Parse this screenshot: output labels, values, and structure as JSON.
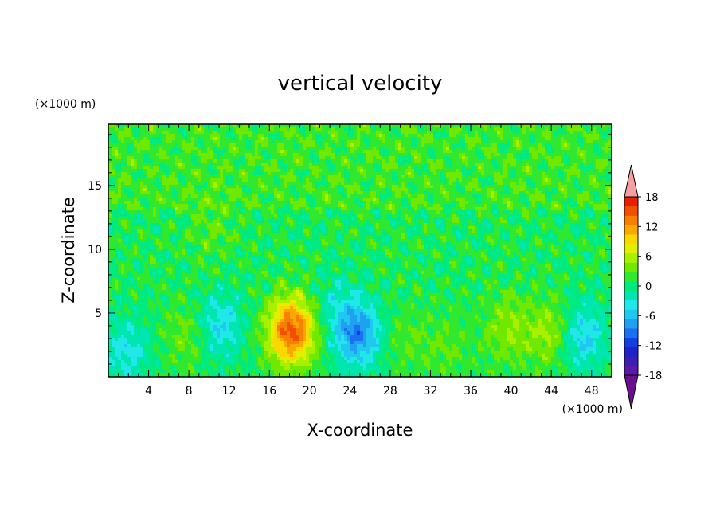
{
  "chart_data": {
    "type": "heatmap",
    "title": "vertical velocity",
    "xlabel": "X-coordinate",
    "ylabel": "Z-coordinate",
    "x_unit": "(×1000 m)",
    "y_unit": "(×1000 m)",
    "xlim": [
      0,
      50
    ],
    "ylim": [
      0,
      19.8
    ],
    "x_ticks": [
      "4",
      "8",
      "12",
      "16",
      "20",
      "24",
      "28",
      "32",
      "36",
      "40",
      "44",
      "48"
    ],
    "y_ticks": [
      "5",
      "10",
      "15"
    ],
    "colorbar": {
      "levels_min": -20,
      "levels_max": 20,
      "step": 2,
      "tick_labels": [
        "18",
        "12",
        "6",
        "0",
        "-6",
        "-12",
        "-18"
      ],
      "extend": "both",
      "colors": [
        "#6a0f8e",
        "#5a1aa8",
        "#3a1fb0",
        "#1f22c8",
        "#1040e0",
        "#1a70f0",
        "#20a0f0",
        "#20c8f0",
        "#20e8e8",
        "#00e6b0",
        "#00ea80",
        "#30e830",
        "#70e800",
        "#a8f000",
        "#e0f000",
        "#f8d800",
        "#f8a800",
        "#f88000",
        "#f05000",
        "#e82000",
        "#f4a0a0"
      ]
    },
    "features": [
      {
        "x": 18.2,
        "z": 3.6,
        "peak": 15
      },
      {
        "x": 8.0,
        "z": 3.2,
        "peak": 3
      },
      {
        "x": 11.0,
        "z": 4.0,
        "peak": -6
      },
      {
        "x": 1.8,
        "z": 2.0,
        "peak": -5
      },
      {
        "x": 24.8,
        "z": 3.3,
        "peak": -10
      },
      {
        "x": 22.5,
        "z": 5.5,
        "peak": -3
      },
      {
        "x": 29.5,
        "z": 3.0,
        "peak": 2
      },
      {
        "x": 39.8,
        "z": 3.8,
        "peak": 4
      },
      {
        "x": 44.2,
        "z": 3.4,
        "peak": 5
      },
      {
        "x": 47.0,
        "z": 3.2,
        "peak": -7
      },
      {
        "x": 33.5,
        "z": 2.2,
        "peak": 2
      },
      {
        "x": 10.5,
        "z": 11.5,
        "peak": 2
      }
    ]
  }
}
